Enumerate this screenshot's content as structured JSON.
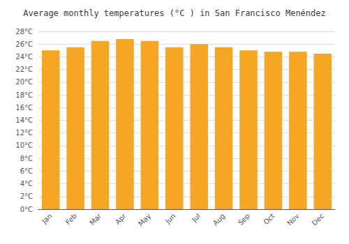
{
  "chart_data": {
    "type": "bar",
    "title": "Average monthly temperatures (°C ) in San Francisco Menéndez",
    "categories": [
      "Jan",
      "Feb",
      "Mar",
      "Apr",
      "May",
      "Jun",
      "Jul",
      "Aug",
      "Sep",
      "Oct",
      "Nov",
      "Dec"
    ],
    "values": [
      25.0,
      25.5,
      26.5,
      26.8,
      26.5,
      25.5,
      26.0,
      25.5,
      25.0,
      24.8,
      24.8,
      24.5
    ],
    "color": "#F5A623",
    "ylim": [
      0,
      28
    ],
    "yticks": [
      {
        "value": 0,
        "label": "0°C"
      },
      {
        "value": 2,
        "label": "2°C"
      },
      {
        "value": 4,
        "label": "4°C"
      },
      {
        "value": 6,
        "label": "6°C"
      },
      {
        "value": 8,
        "label": "8°C"
      },
      {
        "value": 10,
        "label": "10°C"
      },
      {
        "value": 12,
        "label": "12°C"
      },
      {
        "value": 14,
        "label": "14°C"
      },
      {
        "value": 16,
        "label": "16°C"
      },
      {
        "value": 18,
        "label": "18°C"
      },
      {
        "value": 20,
        "label": "20°C"
      },
      {
        "value": 22,
        "label": "22°C"
      },
      {
        "value": 24,
        "label": "24°C"
      },
      {
        "value": 26,
        "label": "26°C"
      },
      {
        "value": 28,
        "label": "28°C"
      }
    ],
    "grid": true
  }
}
